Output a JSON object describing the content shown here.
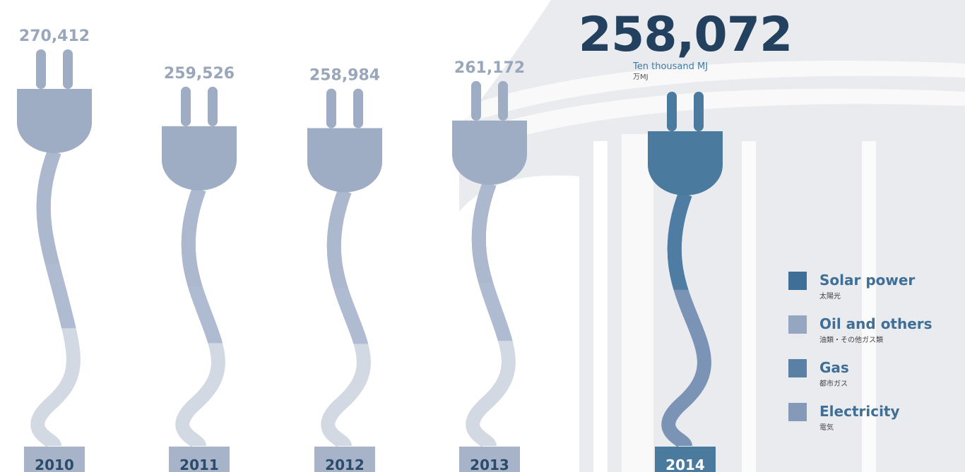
{
  "chart_data": {
    "type": "plug",
    "categories": [
      "2010",
      "2011",
      "2012",
      "2013",
      "2014"
    ],
    "values": [
      270412,
      259526,
      258984,
      261172,
      258072
    ],
    "value_labels": [
      "270,412",
      "259,526",
      "258,984",
      "261,172",
      "258,072"
    ],
    "unit": "Ten thousand MJ",
    "unit_ja": "万MJ",
    "legend": [
      {
        "name": "Solar power",
        "sub": "太陽光",
        "color": "#3f6f96"
      },
      {
        "name": "Oil and others",
        "sub": "油類・その他ガス類",
        "color": "#95a6c0"
      },
      {
        "name": "Gas",
        "sub": "都市ガス",
        "color": "#5b80a6"
      },
      {
        "name": "Electricity",
        "sub": "電気",
        "color": "#8599b8"
      }
    ]
  }
}
